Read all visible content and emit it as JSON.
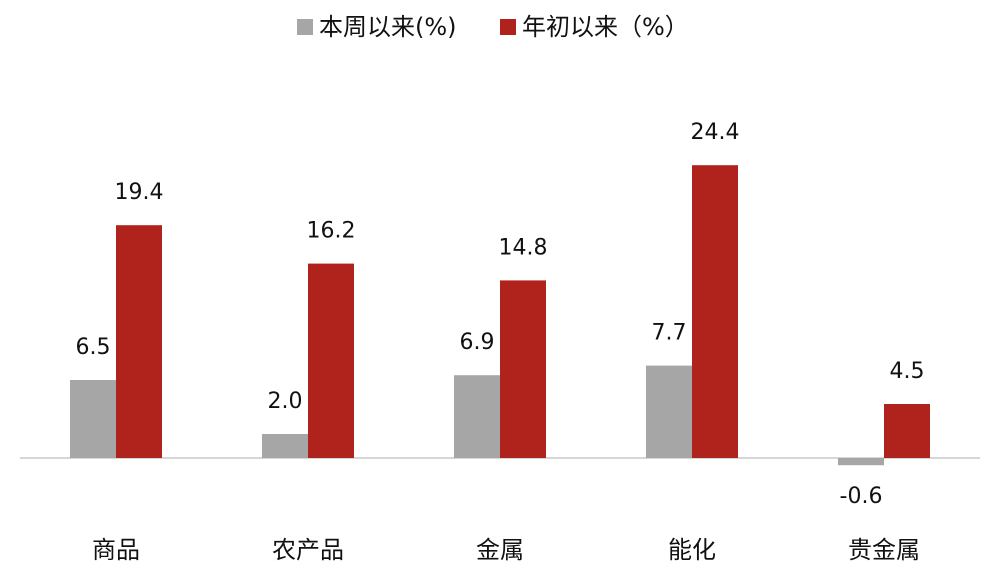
{
  "chart_data": {
    "type": "bar",
    "categories": [
      "商品",
      "农产品",
      "金属",
      "能化",
      "贵金属"
    ],
    "series": [
      {
        "name": "本周以来(%)",
        "color": "#a6a6a6",
        "values": [
          6.5,
          2.0,
          6.9,
          7.7,
          -0.6
        ],
        "value_labels": [
          "6.5",
          "2.0",
          "6.9",
          "7.7",
          "-0.6"
        ]
      },
      {
        "name": "年初以来（%）",
        "color": "#b0231c",
        "values": [
          19.4,
          16.2,
          14.8,
          24.4,
          4.5
        ],
        "value_labels": [
          "19.4",
          "16.2",
          "14.8",
          "24.4",
          "4.5"
        ]
      }
    ],
    "legend": "top"
  }
}
